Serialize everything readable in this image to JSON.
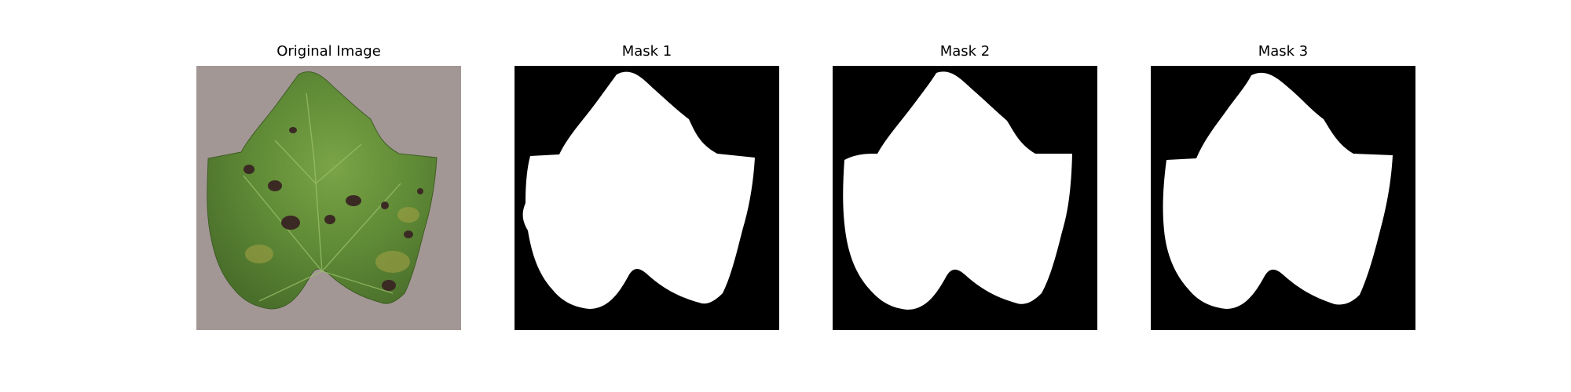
{
  "figure": {
    "panels": [
      {
        "title": "Original Image",
        "kind": "photo"
      },
      {
        "title": "Mask 1",
        "kind": "mask"
      },
      {
        "title": "Mask 2",
        "kind": "mask"
      },
      {
        "title": "Mask 3",
        "kind": "mask"
      }
    ]
  },
  "colors": {
    "background": "#ffffff",
    "mask_background": "#000000",
    "mask_foreground": "#ffffff",
    "photo_backdrop": "#a39796",
    "leaf_green": "#5f8a36",
    "leaf_dark_green": "#4a6f2b",
    "lesion": "#3b2a24"
  }
}
